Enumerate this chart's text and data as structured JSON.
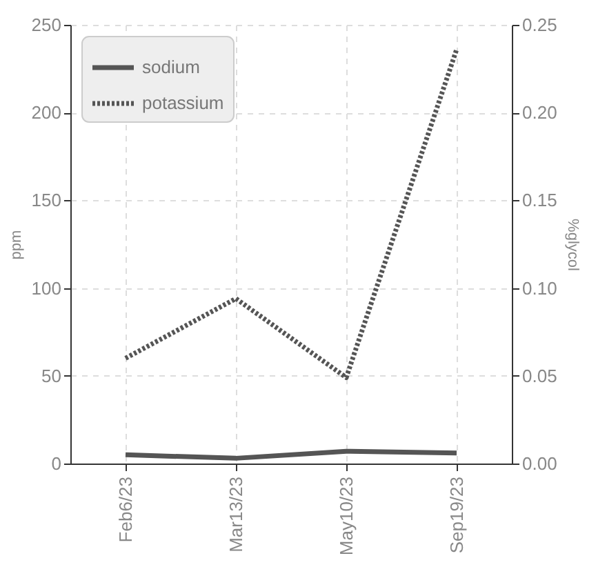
{
  "chart_data": {
    "type": "line",
    "ylabel": "ppm",
    "y2label": "%glycol",
    "categories": [
      "Feb6/23",
      "Mar13/23",
      "May10/23",
      "Sep19/23"
    ],
    "series": [
      {
        "name": "sodium",
        "color": "#555555",
        "line_style": "solid",
        "values": [
          5,
          3,
          7,
          6
        ]
      },
      {
        "name": "potassium",
        "color": "#555555",
        "line_style": "dotted",
        "values": [
          60,
          94,
          49,
          236
        ]
      }
    ],
    "ylim": [
      0,
      250
    ],
    "yticks": [
      0,
      50,
      100,
      150,
      200,
      250
    ],
    "y2lim": [
      0,
      0.25
    ],
    "y2ticks": [
      {
        "value": 0,
        "label": "0.00"
      },
      0.05,
      {
        "value": 0.1,
        "label": "0.10"
      },
      0.15,
      {
        "value": 0.2,
        "label": "0.20"
      },
      0.25
    ],
    "grid": true,
    "legend": "top left"
  }
}
